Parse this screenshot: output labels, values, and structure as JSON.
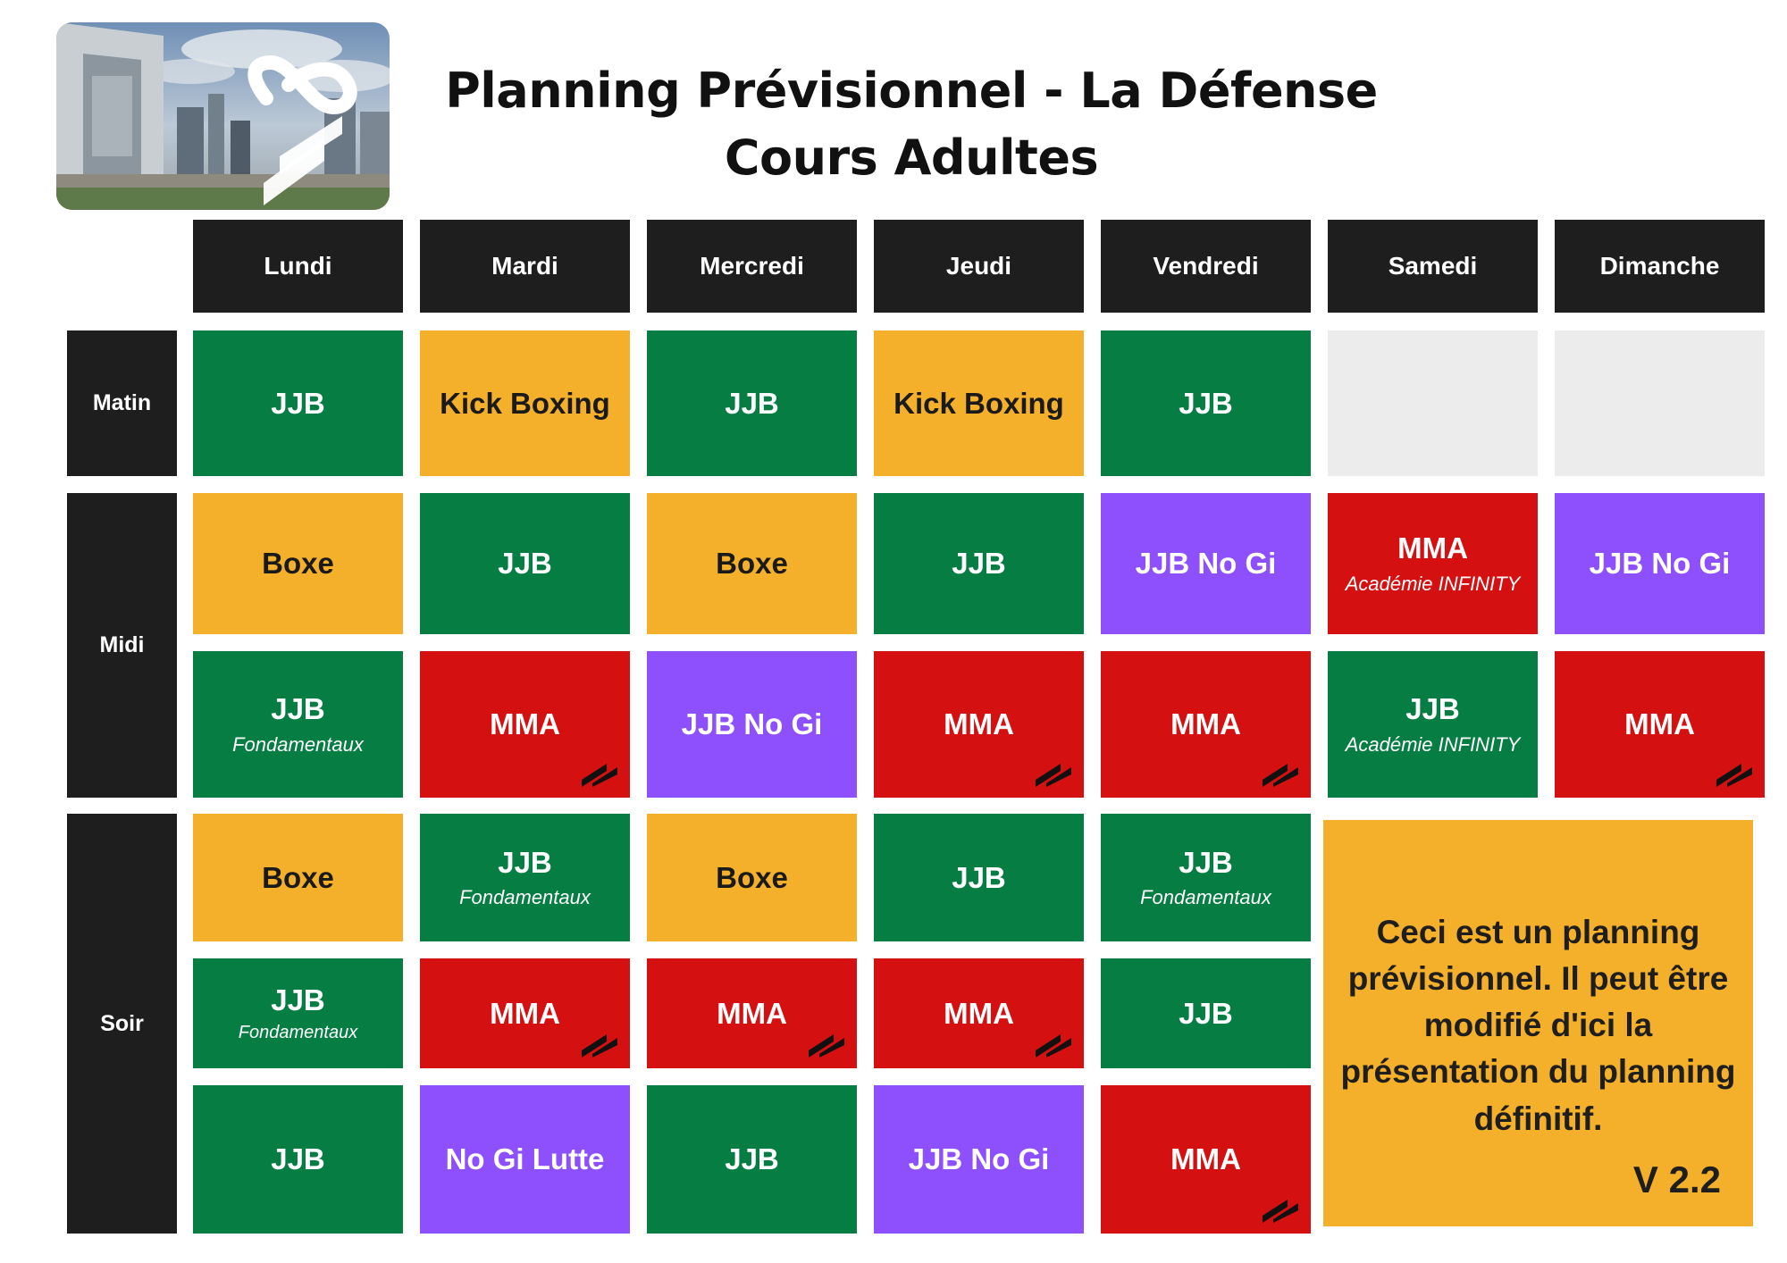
{
  "header": {
    "title_line1": "Planning Prévisionnel - La Défense",
    "title_line2": "Cours Adultes"
  },
  "days": [
    "Lundi",
    "Mardi",
    "Mercredi",
    "Jeudi",
    "Vendredi",
    "Samedi",
    "Dimanche"
  ],
  "periods": {
    "morning": "Matin",
    "noon": "Midi",
    "evening": "Soir"
  },
  "colors": {
    "jjb": "#067d43",
    "boxe": "#f4b02b",
    "mma": "#d41010",
    "nogi": "#8d50fc",
    "empty": "#ececec",
    "header": "#1e1e1e"
  },
  "schedule": {
    "matin": [
      {
        "name": "JJB",
        "sub": ""
      },
      {
        "name": "Kick Boxing",
        "sub": ""
      },
      {
        "name": "JJB",
        "sub": ""
      },
      {
        "name": "Kick Boxing",
        "sub": ""
      },
      {
        "name": "JJB",
        "sub": ""
      },
      {
        "name": "",
        "sub": ""
      },
      {
        "name": "",
        "sub": ""
      }
    ],
    "midi1": [
      {
        "name": "Boxe",
        "sub": ""
      },
      {
        "name": "JJB",
        "sub": ""
      },
      {
        "name": "Boxe",
        "sub": ""
      },
      {
        "name": "JJB",
        "sub": ""
      },
      {
        "name": "JJB No Gi",
        "sub": ""
      },
      {
        "name": "MMA",
        "sub": "Académie INFINITY"
      },
      {
        "name": "JJB No Gi",
        "sub": ""
      }
    ],
    "midi2": [
      {
        "name": "JJB",
        "sub": "Fondamentaux"
      },
      {
        "name": "MMA",
        "sub": ""
      },
      {
        "name": "JJB No Gi",
        "sub": ""
      },
      {
        "name": "MMA",
        "sub": ""
      },
      {
        "name": "MMA",
        "sub": ""
      },
      {
        "name": "JJB",
        "sub": "Académie INFINITY"
      },
      {
        "name": "MMA",
        "sub": ""
      }
    ],
    "soir1": [
      {
        "name": "Boxe",
        "sub": ""
      },
      {
        "name": "JJB",
        "sub": "Fondamentaux"
      },
      {
        "name": "Boxe",
        "sub": ""
      },
      {
        "name": "JJB",
        "sub": ""
      },
      {
        "name": "JJB",
        "sub": "Fondamentaux"
      }
    ],
    "soir2": [
      {
        "name": "JJB",
        "sub": "Fondamentaux"
      },
      {
        "name": "MMA",
        "sub": ""
      },
      {
        "name": "MMA",
        "sub": ""
      },
      {
        "name": "MMA",
        "sub": ""
      },
      {
        "name": "JJB",
        "sub": ""
      }
    ],
    "soir3": [
      {
        "name": "JJB",
        "sub": ""
      },
      {
        "name": "No Gi Lutte",
        "sub": ""
      },
      {
        "name": "JJB",
        "sub": ""
      },
      {
        "name": "JJB No Gi",
        "sub": ""
      },
      {
        "name": "MMA",
        "sub": ""
      }
    ]
  },
  "note": {
    "text": "Ceci est un planning prévisionnel. Il peut être modifié d'ici la présentation du planning définitif.",
    "version": "V 2.2"
  },
  "icons": {
    "photo": "la-defense-photo",
    "brand": "infinity-logo-icon",
    "badge": "club-logo-icon"
  }
}
